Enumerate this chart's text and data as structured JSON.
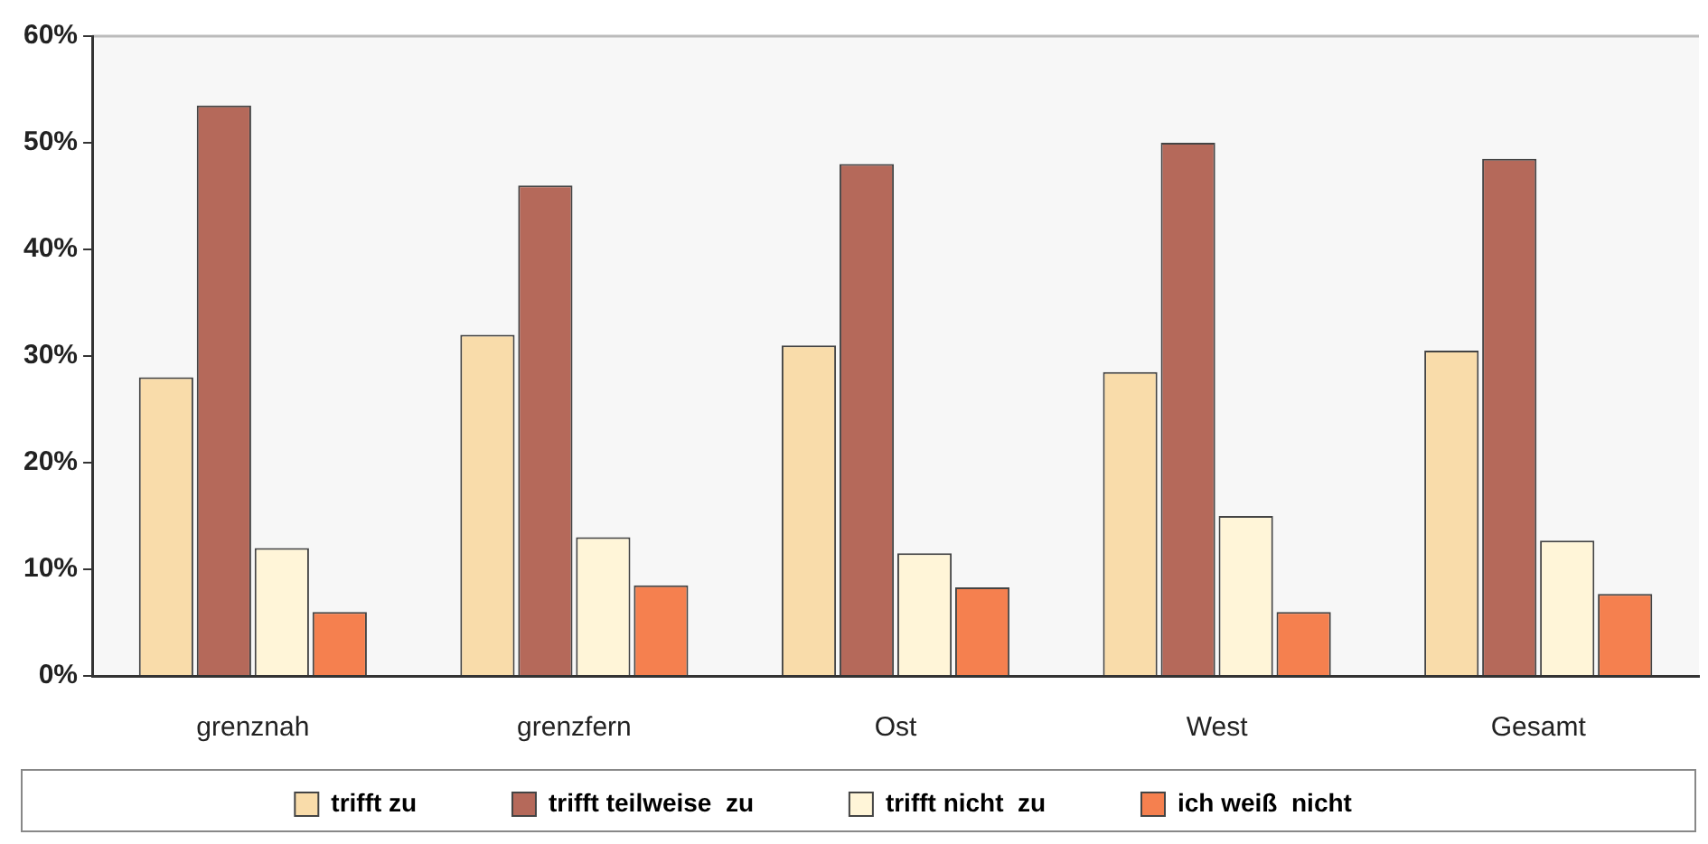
{
  "chart_data": {
    "type": "bar",
    "categories": [
      "grenznah",
      "grenzfern",
      "Ost",
      "West",
      "Gesamt"
    ],
    "series": [
      {
        "name": "trifft zu",
        "color": "#f9dcaa",
        "values": [
          28,
          32,
          31,
          28.5,
          30.5
        ]
      },
      {
        "name": "trifft teilweise  zu",
        "color": "#b5695a",
        "values": [
          53.5,
          46,
          48,
          50,
          48.5
        ]
      },
      {
        "name": "trifft nicht  zu",
        "color": "#fff5d8",
        "values": [
          12,
          13,
          11.5,
          15,
          12.7
        ]
      },
      {
        "name": "ich weiß  nicht",
        "color": "#f5804f",
        "values": [
          6,
          8.5,
          8.3,
          6,
          7.7
        ]
      }
    ],
    "ylim": [
      0,
      60
    ],
    "yticks": [
      {
        "value": 0,
        "label": "0%"
      },
      {
        "value": 10,
        "label": "10%"
      },
      {
        "value": 20,
        "label": "20%"
      },
      {
        "value": 30,
        "label": "30%"
      },
      {
        "value": 40,
        "label": "40%"
      },
      {
        "value": 50,
        "label": "50%"
      },
      {
        "value": 60,
        "label": "60%"
      }
    ],
    "grid": false,
    "legend": "bottom"
  }
}
